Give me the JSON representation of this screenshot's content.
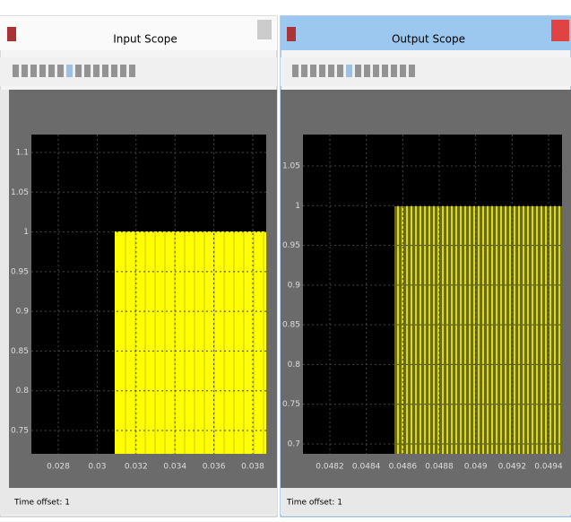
{
  "windows": [
    {
      "title": "Input Scope",
      "status": "Time offset: 1",
      "yticks": [
        "1.1",
        "1.05",
        "1",
        "0.95",
        "0.9",
        "0.85",
        "0.8",
        "0.75"
      ],
      "xticks": [
        "0.028",
        "0.03",
        "0.032",
        "0.034",
        "0.036",
        "0.038"
      ]
    },
    {
      "title": "Output Scope",
      "status": "Time offset: 1",
      "yticks": [
        "1.05",
        "1",
        "0.95",
        "0.9",
        "0.85",
        "0.8",
        "0.75",
        "0.7"
      ],
      "xticks": [
        "0.0482",
        "0.0484",
        "0.0486",
        "0.0488",
        "0.049",
        "0.0492",
        "0.0494"
      ]
    }
  ]
}
